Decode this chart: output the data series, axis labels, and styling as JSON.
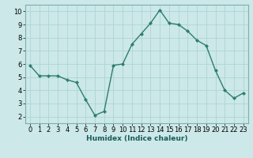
{
  "x": [
    0,
    1,
    2,
    3,
    4,
    5,
    6,
    7,
    8,
    9,
    10,
    11,
    12,
    13,
    14,
    15,
    16,
    17,
    18,
    19,
    20,
    21,
    22,
    23
  ],
  "y": [
    5.9,
    5.1,
    5.1,
    5.1,
    4.8,
    4.6,
    3.3,
    2.1,
    2.4,
    5.9,
    6.0,
    7.5,
    8.3,
    9.1,
    10.1,
    9.1,
    9.0,
    8.5,
    7.8,
    7.4,
    5.5,
    4.0,
    3.4,
    3.8
  ],
  "xlim": [
    -0.5,
    23.5
  ],
  "ylim": [
    1.5,
    10.5
  ],
  "yticks": [
    2,
    3,
    4,
    5,
    6,
    7,
    8,
    9,
    10
  ],
  "xticks": [
    0,
    1,
    2,
    3,
    4,
    5,
    6,
    7,
    8,
    9,
    10,
    11,
    12,
    13,
    14,
    15,
    16,
    17,
    18,
    19,
    20,
    21,
    22,
    23
  ],
  "xlabel": "Humidex (Indice chaleur)",
  "line_color": "#2e7d6e",
  "marker": "D",
  "marker_size": 2,
  "background_color": "#cce8e8",
  "grid_color": "#add4d4",
  "axis_bg": "#cce8e8",
  "tick_fontsize": 6,
  "xlabel_fontsize": 6.5
}
